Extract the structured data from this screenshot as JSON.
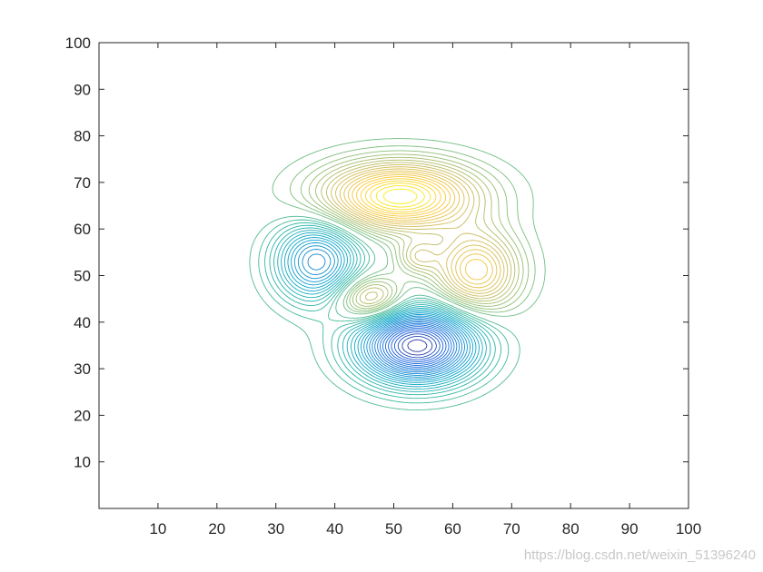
{
  "chart_data": {
    "type": "contour",
    "title": "",
    "xlabel": "",
    "ylabel": "",
    "xlim": [
      0,
      100
    ],
    "ylim": [
      0,
      100
    ],
    "xticks": [
      10,
      20,
      30,
      40,
      50,
      60,
      70,
      80,
      90,
      100
    ],
    "yticks": [
      10,
      20,
      30,
      40,
      50,
      60,
      70,
      80,
      90,
      100
    ],
    "colormap": "parula",
    "grid": false,
    "features": [
      {
        "kind": "peak",
        "x": 51,
        "y": 67,
        "sx": 9,
        "sy": 5,
        "amplitude": 1.0
      },
      {
        "kind": "peak",
        "x": 64,
        "y": 51,
        "sx": 5,
        "sy": 6,
        "amplitude": 0.7
      },
      {
        "kind": "peak",
        "x": 46,
        "y": 45,
        "sx": 4,
        "sy": 3.5,
        "amplitude": 0.55
      },
      {
        "kind": "peak",
        "x": 54,
        "y": 54,
        "sx": 2.5,
        "sy": 2.5,
        "amplitude": 0.3
      },
      {
        "kind": "trough",
        "x": 54,
        "y": 35,
        "sx": 7,
        "sy": 5.5,
        "amplitude": -1.3
      },
      {
        "kind": "trough",
        "x": 37,
        "y": 53,
        "sx": 5,
        "sy": 6,
        "amplitude": -0.75
      }
    ]
  },
  "colors": {
    "background": "#ffffff",
    "axis": "#262626",
    "colormap_stops": [
      "#352a87",
      "#0f5cdd",
      "#1481d6",
      "#06a4ca",
      "#2eb7a4",
      "#87bf77",
      "#d1bb59",
      "#fec832",
      "#f9fb0e"
    ]
  },
  "watermark": "https://blog.csdn.net/weixin_51396240"
}
